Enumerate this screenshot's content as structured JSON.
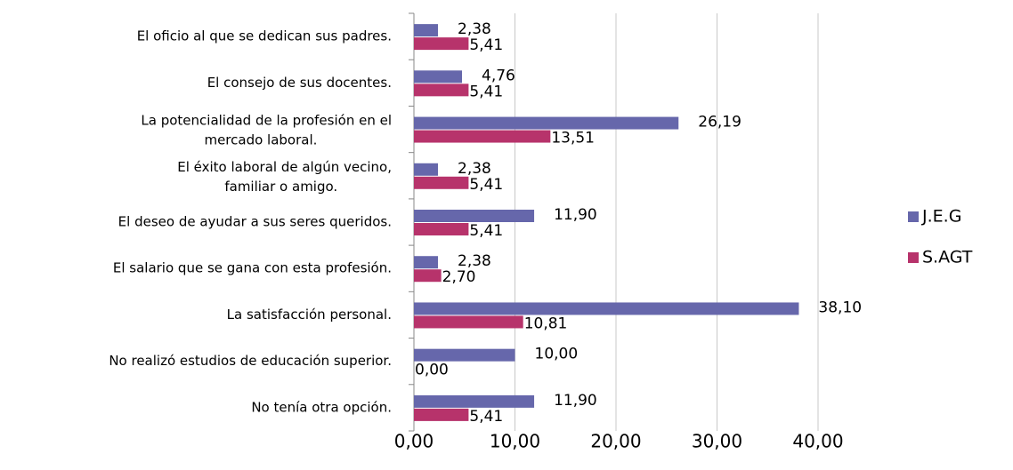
{
  "chart_data": {
    "type": "hbar",
    "categories": [
      "El oficio al que se dedican sus padres.",
      "El consejo de sus docentes.",
      "La potencialidad de la profesión en el mercado laboral.",
      "El éxito laboral de algún vecino, familiar o amigo.",
      "El deseo de ayudar a sus seres queridos.",
      "El salario que se gana con esta profesión.",
      "La satisfacción personal.",
      "No realizó estudios de educación superior.",
      "No tenía otra opción."
    ],
    "series": [
      {
        "name": "J.E.G",
        "color": "#6667ab",
        "values": [
          2.38,
          4.76,
          26.19,
          2.38,
          11.9,
          2.38,
          38.1,
          10.0,
          11.9
        ],
        "value_labels": [
          "2,38",
          "4,76",
          "26,19",
          "2,38",
          "11,90",
          "2,38",
          "38,10",
          "10,00",
          "11,90"
        ]
      },
      {
        "name": "S.AGT",
        "color": "#b7336b",
        "values": [
          5.41,
          5.41,
          13.51,
          5.41,
          5.41,
          2.7,
          10.81,
          0.0,
          5.41
        ],
        "value_labels": [
          "5,41",
          "5,41",
          "13,51",
          "5,41",
          "5,41",
          "2,70",
          "10,81",
          "0,00",
          "5,41"
        ]
      }
    ],
    "xlim": [
      0,
      40
    ],
    "xticks": [
      {
        "value": 0,
        "label": "0,00"
      },
      {
        "value": 10,
        "label": "10,00"
      },
      {
        "value": 20,
        "label": "20,00"
      },
      {
        "value": 30,
        "label": "30,00"
      },
      {
        "value": 40,
        "label": "40,00"
      }
    ],
    "grid": true,
    "legend": "right"
  }
}
